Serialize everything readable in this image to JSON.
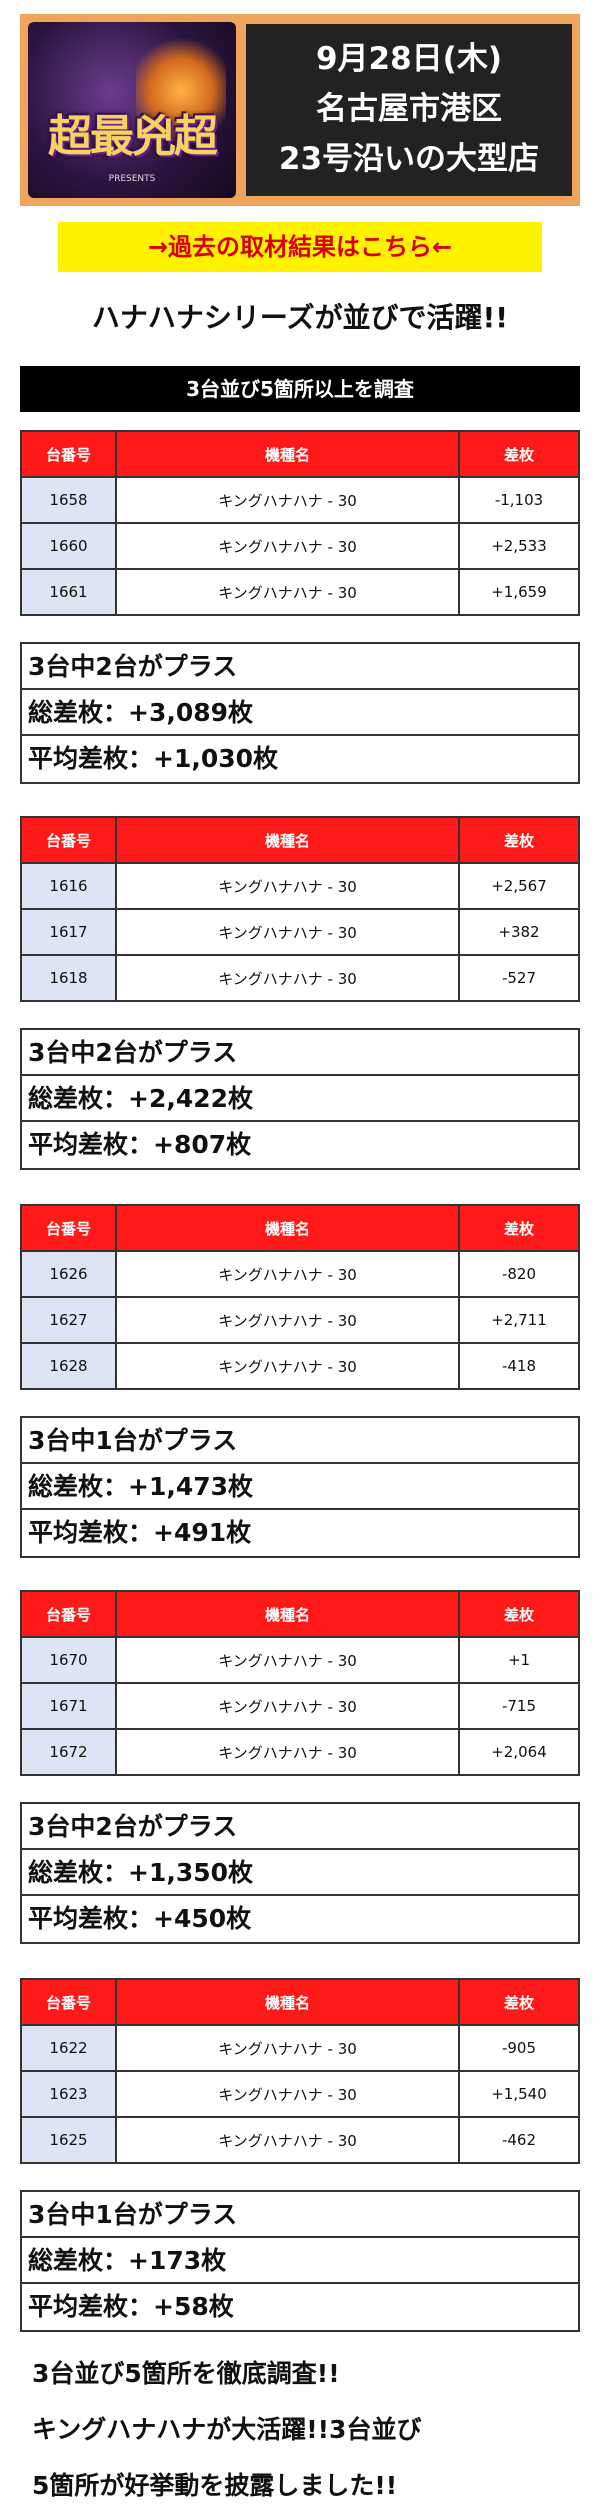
{
  "header": {
    "logo_text": "超最兇超",
    "logo_sub": "PRESENTS",
    "date": "9月28日(木)",
    "location": "名古屋市港区",
    "store": "23号沿いの大型店"
  },
  "link_label": "→過去の取材結果はこちら←",
  "headline": "ハナハナシリーズが並びで活躍!!",
  "section_title": "3台並び5箇所以上を調査",
  "table_headers": {
    "number": "台番号",
    "model": "機種名",
    "diff": "差枚"
  },
  "groups": [
    {
      "rows": [
        {
          "number": "1658",
          "model": "キングハナハナ - 30",
          "diff": "-1,103"
        },
        {
          "number": "1660",
          "model": "キングハナハナ - 30",
          "diff": "+2,533"
        },
        {
          "number": "1661",
          "model": "キングハナハナ - 30",
          "diff": "+1,659"
        }
      ],
      "result": "3台中2台がプラス",
      "total": "総差枚：+3,089枚",
      "average": "平均差枚：+1,030枚"
    },
    {
      "rows": [
        {
          "number": "1616",
          "model": "キングハナハナ - 30",
          "diff": "+2,567"
        },
        {
          "number": "1617",
          "model": "キングハナハナ - 30",
          "diff": "+382"
        },
        {
          "number": "1618",
          "model": "キングハナハナ - 30",
          "diff": "-527"
        }
      ],
      "result": "3台中2台がプラス",
      "total": "総差枚：+2,422枚",
      "average": "平均差枚：+807枚"
    },
    {
      "rows": [
        {
          "number": "1626",
          "model": "キングハナハナ - 30",
          "diff": "-820"
        },
        {
          "number": "1627",
          "model": "キングハナハナ - 30",
          "diff": "+2,711"
        },
        {
          "number": "1628",
          "model": "キングハナハナ - 30",
          "diff": "-418"
        }
      ],
      "result": "3台中1台がプラス",
      "total": "総差枚：+1,473枚",
      "average": "平均差枚：+491枚"
    },
    {
      "rows": [
        {
          "number": "1670",
          "model": "キングハナハナ - 30",
          "diff": "+1"
        },
        {
          "number": "1671",
          "model": "キングハナハナ - 30",
          "diff": "-715"
        },
        {
          "number": "1672",
          "model": "キングハナハナ - 30",
          "diff": "+2,064"
        }
      ],
      "result": "3台中2台がプラス",
      "total": "総差枚：+1,350枚",
      "average": "平均差枚：+450枚"
    },
    {
      "rows": [
        {
          "number": "1622",
          "model": "キングハナハナ - 30",
          "diff": "-905"
        },
        {
          "number": "1623",
          "model": "キングハナハナ - 30",
          "diff": "+1,540"
        },
        {
          "number": "1625",
          "model": "キングハナハナ - 30",
          "diff": "-462"
        }
      ],
      "result": "3台中1台がプラス",
      "total": "総差枚：+173枚",
      "average": "平均差枚：+58枚"
    }
  ],
  "footer_lines": [
    "3台並び5箇所を徹底調査!!",
    "キングハナハナが大活躍!!3台並び",
    "5箇所が好挙動を披露しました!!"
  ]
}
